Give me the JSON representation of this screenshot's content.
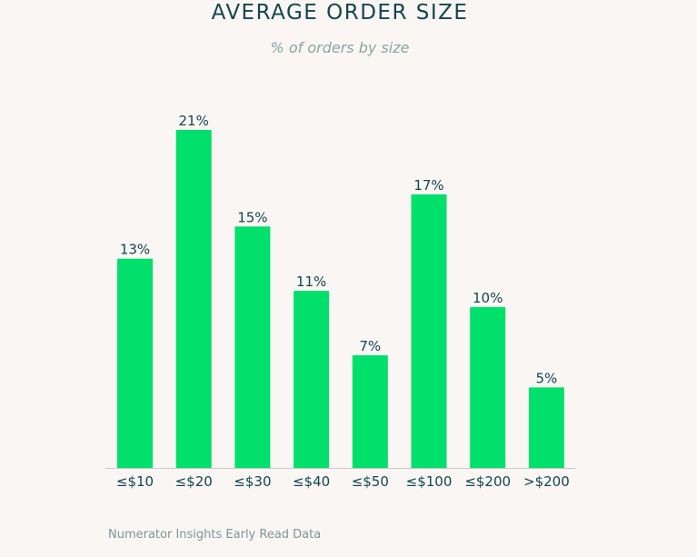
{
  "chart_data": {
    "type": "bar",
    "title": "AVERAGE ORDER SIZE",
    "subtitle": "% of orders by size",
    "categories": [
      "≤$10",
      "≤$20",
      "≤$30",
      "≤$40",
      "≤$50",
      "≤$100",
      "≤$200",
      ">$200"
    ],
    "values": [
      13,
      21,
      15,
      11,
      7,
      17,
      10,
      5
    ],
    "data_labels": [
      "13%",
      "21%",
      "15%",
      "11%",
      "7%",
      "17%",
      "10%",
      "5%"
    ],
    "unit": "%",
    "xlabel": "",
    "ylabel": "",
    "ylim": [
      0,
      21
    ],
    "grid": false,
    "legend": "none",
    "colors": {
      "bar": "#00e06b",
      "label": "#14464e",
      "axis": "#c9c9c9"
    }
  },
  "footer": {
    "source": "Numerator Insights Early Read Data"
  }
}
